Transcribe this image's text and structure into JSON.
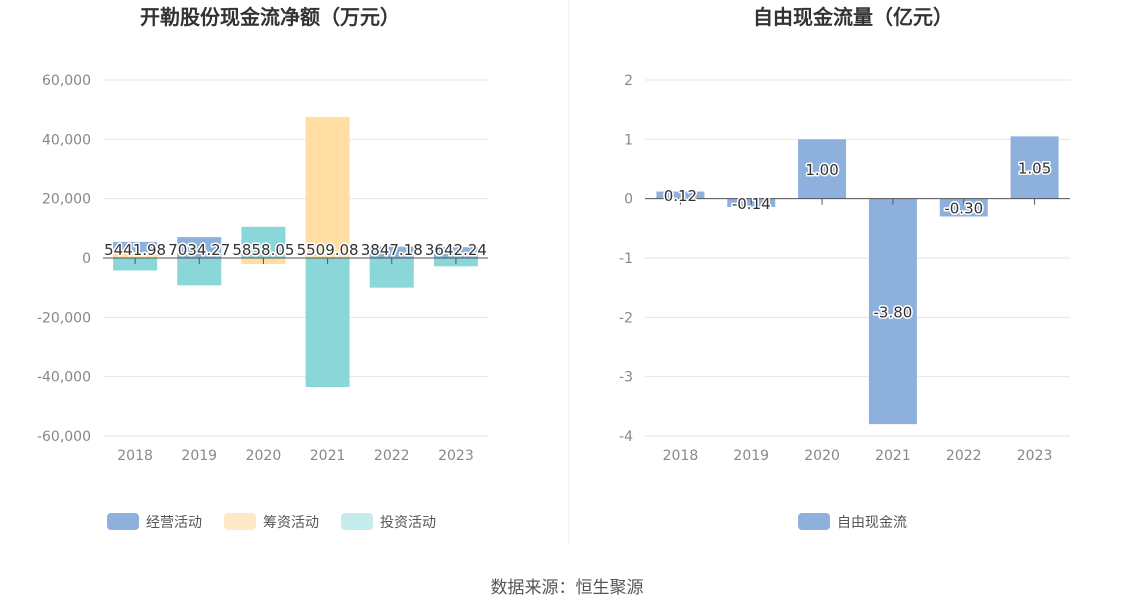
{
  "source_text": "数据来源：恒生聚源",
  "colors": {
    "operating": "#8eb0dd",
    "financing": "#ffdda3",
    "investing": "#8ad6d9",
    "fcf": "#8eb0dd"
  },
  "chart_data": [
    {
      "type": "bar",
      "title": "开勒股份现金流净额（万元）",
      "categories": [
        "2018",
        "2019",
        "2020",
        "2021",
        "2022",
        "2023"
      ],
      "ylim": [
        -60000,
        60000
      ],
      "yticks": [
        60000,
        40000,
        20000,
        0,
        -20000,
        -40000,
        -60000
      ],
      "ytick_labels": [
        "60,000",
        "40,000",
        "20,000",
        "0",
        "-20,000",
        "-40,000",
        "-60,000"
      ],
      "grid": true,
      "legend": "bottom",
      "series": [
        {
          "name": "经营活动",
          "values": [
            5441.98,
            7034.27,
            5858.05,
            5509.08,
            3847.18,
            3642.24
          ],
          "labels": [
            "5441.98",
            "7034.27",
            "5858.05",
            "5509.08",
            "3847.18",
            "3642.24"
          ]
        },
        {
          "name": "筹资活动",
          "values": [
            1500,
            -1500,
            -2000,
            47500,
            -4000,
            -900
          ]
        },
        {
          "name": "投资活动",
          "values": [
            -4200,
            -9200,
            10500,
            -43500,
            -10000,
            -2800
          ]
        }
      ]
    },
    {
      "type": "bar",
      "title": "自由现金流量（亿元）",
      "categories": [
        "2018",
        "2019",
        "2020",
        "2021",
        "2022",
        "2023"
      ],
      "ylim": [
        -4,
        2
      ],
      "yticks": [
        2,
        1,
        0,
        -1,
        -2,
        -3,
        -4
      ],
      "ytick_labels": [
        "2",
        "1",
        "0",
        "-1",
        "-2",
        "-3",
        "-4"
      ],
      "grid": true,
      "legend": "bottom",
      "series": [
        {
          "name": "自由现金流",
          "values": [
            0.12,
            -0.14,
            1.0,
            -3.8,
            -0.3,
            1.05
          ],
          "labels": [
            "0.12",
            "-0.14",
            "1.00",
            "-3.80",
            "-0.30",
            "1.05"
          ]
        }
      ]
    }
  ]
}
